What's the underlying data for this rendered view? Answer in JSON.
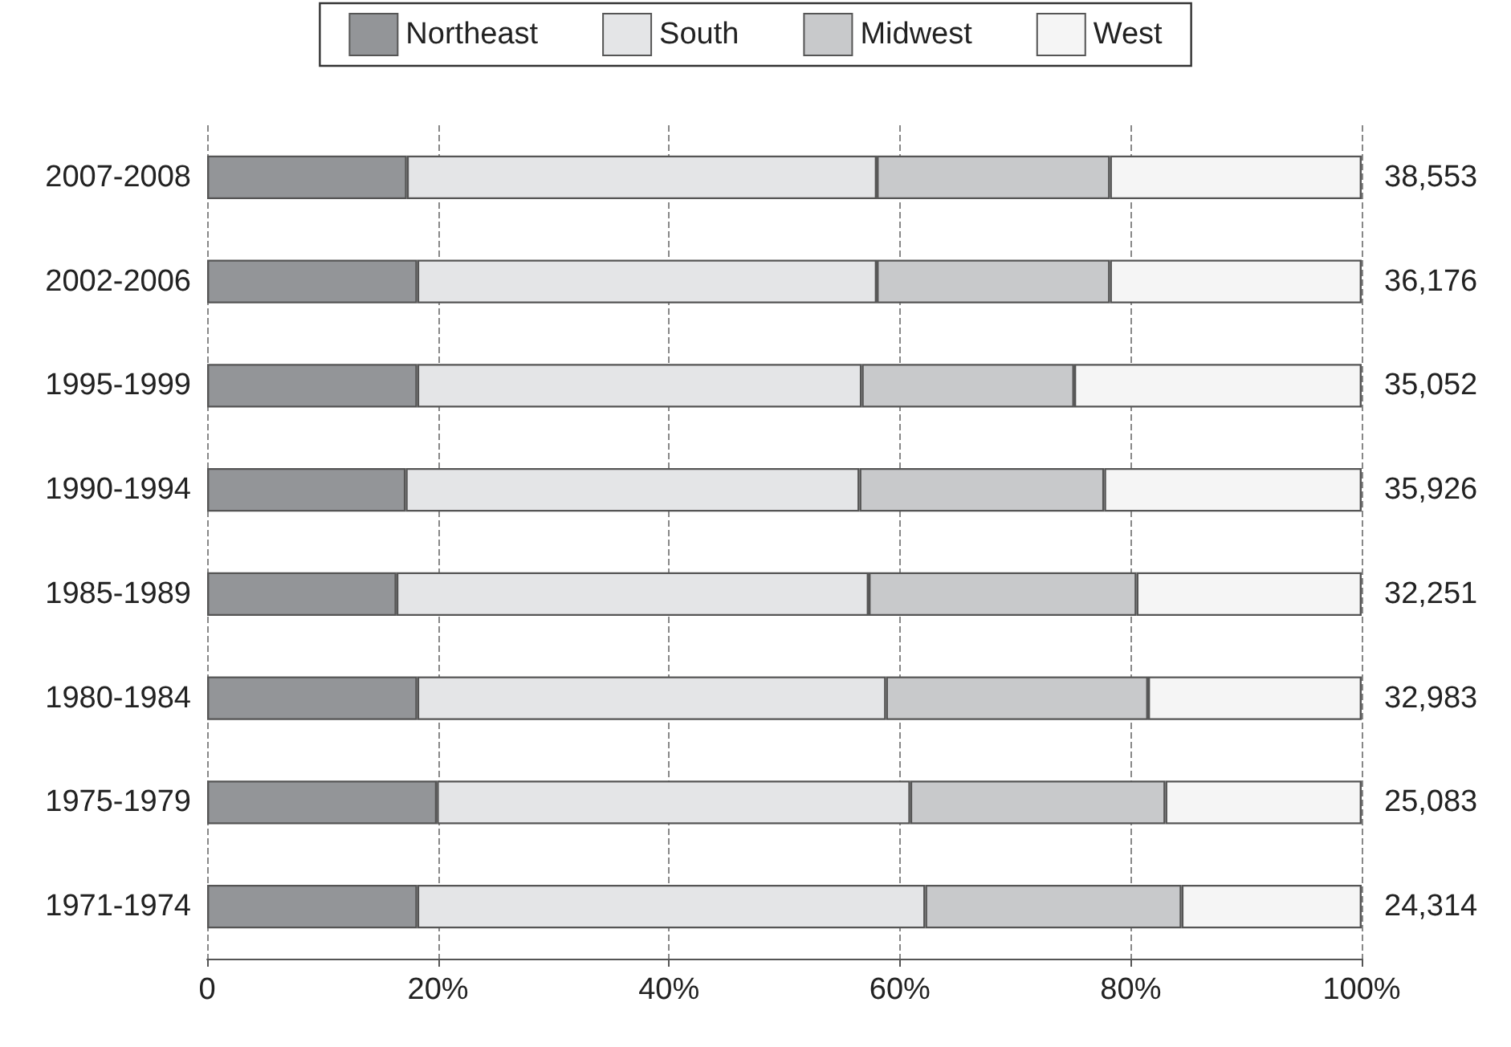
{
  "chart_data": {
    "type": "bar",
    "orientation": "horizontal",
    "stacked": true,
    "categories": [
      "2007-2008",
      "2002-2006",
      "1995-1999",
      "1990-1994",
      "1985-1989",
      "1980-1984",
      "1975-1979",
      "1971-1974"
    ],
    "series": [
      {
        "name": "Northeast",
        "color": "#939598",
        "values": [
          17.3,
          18.2,
          18.2,
          17.2,
          16.4,
          18.2,
          19.9,
          18.2
        ]
      },
      {
        "name": "South",
        "color": "#e4e5e7",
        "values": [
          40.7,
          39.8,
          38.5,
          39.3,
          40.9,
          40.6,
          41.0,
          44.0
        ]
      },
      {
        "name": "Midwest",
        "color": "#c8c9cb",
        "values": [
          20.2,
          20.2,
          18.4,
          21.2,
          23.2,
          22.7,
          22.1,
          22.2
        ]
      },
      {
        "name": "West",
        "color": "#f5f5f5",
        "values": [
          21.8,
          21.8,
          24.9,
          22.3,
          19.5,
          18.5,
          17.0,
          15.6
        ]
      }
    ],
    "annotations": [
      "38,553",
      "36,176",
      "35,052",
      "35,926",
      "32,251",
      "32,983",
      "25,083",
      "24,314"
    ],
    "xlim": [
      0,
      100
    ],
    "xticks": [
      0,
      {
        "value": 20,
        "label": "20%"
      },
      {
        "value": 40,
        "label": "40%"
      },
      {
        "value": 60,
        "label": "60%"
      },
      {
        "value": 80,
        "label": "80%"
      },
      {
        "value": 100,
        "label": "100%"
      }
    ],
    "grid": "x",
    "legend": "top"
  }
}
